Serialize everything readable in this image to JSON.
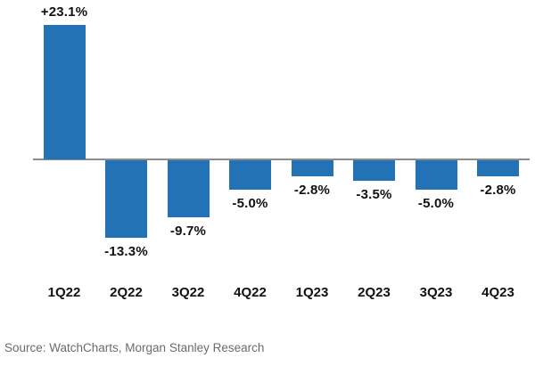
{
  "chart_data": {
    "type": "bar",
    "categories": [
      "1Q22",
      "2Q22",
      "3Q22",
      "4Q22",
      "1Q23",
      "2Q23",
      "3Q23",
      "4Q23"
    ],
    "values": [
      23.1,
      -13.3,
      -9.7,
      -5.0,
      -2.8,
      -3.5,
      -5.0,
      -2.8
    ],
    "value_labels": [
      "+23.1%",
      "-13.3%",
      "-9.7%",
      "-5.0%",
      "-2.8%",
      "-3.5%",
      "-5.0%",
      "-2.8%"
    ],
    "title": "",
    "xlabel": "",
    "ylabel": "",
    "ylim": [
      -15,
      25
    ],
    "grid": false,
    "legend": false,
    "bar_color": "#2272b5",
    "axis_color": "#8c8c8c",
    "label_color": "#111111",
    "source_color": "#6b6b6b"
  },
  "footer": {
    "source": "Source: WatchCharts, Morgan Stanley Research"
  }
}
